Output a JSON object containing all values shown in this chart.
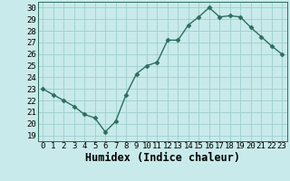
{
  "x": [
    0,
    1,
    2,
    3,
    4,
    5,
    6,
    7,
    8,
    9,
    10,
    11,
    12,
    13,
    14,
    15,
    16,
    17,
    18,
    19,
    20,
    21,
    22,
    23
  ],
  "y": [
    23.0,
    22.5,
    22.0,
    21.5,
    20.8,
    20.5,
    19.3,
    20.2,
    22.5,
    24.3,
    25.0,
    25.3,
    27.2,
    27.2,
    28.5,
    29.2,
    30.0,
    29.2,
    29.3,
    29.2,
    28.3,
    27.5,
    26.7,
    26.0
  ],
  "line_color": "#2d6e5e",
  "marker": "D",
  "marker_size": 2.5,
  "background_color": "#c8eaea",
  "grid_color": "#9ecece",
  "xlabel": "Humidex (Indice chaleur)",
  "xlim": [
    -0.5,
    23.5
  ],
  "ylim": [
    18.5,
    30.5
  ],
  "yticks": [
    19,
    20,
    21,
    22,
    23,
    24,
    25,
    26,
    27,
    28,
    29,
    30
  ],
  "xticks": [
    0,
    1,
    2,
    3,
    4,
    5,
    6,
    7,
    8,
    9,
    10,
    11,
    12,
    13,
    14,
    15,
    16,
    17,
    18,
    19,
    20,
    21,
    22,
    23
  ],
  "tick_fontsize": 6.5,
  "xlabel_fontsize": 8.5,
  "linewidth": 1.0
}
